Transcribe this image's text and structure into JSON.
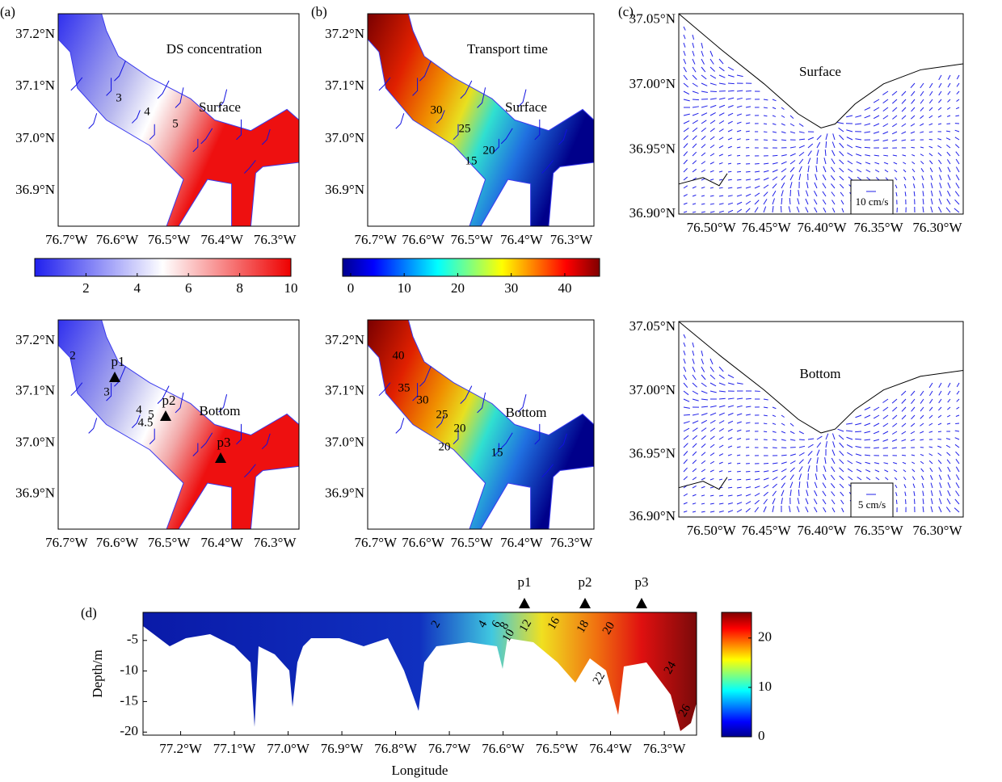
{
  "panel_labels": [
    "(a)",
    "(b)",
    "(c)",
    "(d)"
  ],
  "maps": [
    {
      "title": "DS concentration",
      "layer": "Surface",
      "contour_labels": [
        "3",
        "4",
        "5"
      ]
    },
    {
      "title": "Transport time",
      "layer": "Surface",
      "contour_labels": [
        "30",
        "25",
        "20",
        "15"
      ]
    },
    {
      "layer": "Surface",
      "scale_label": "10 cm/s"
    },
    {
      "layer": "Bottom",
      "contour_labels": [
        "2",
        "3",
        "4",
        "5",
        "4.5"
      ],
      "stations": [
        "p1",
        "p2",
        "p3"
      ]
    },
    {
      "layer": "Bottom",
      "contour_labels": [
        "40",
        "35",
        "30",
        "25",
        "20",
        "15",
        "20"
      ]
    },
    {
      "layer": "Bottom",
      "scale_label": "5 cm/s"
    }
  ],
  "map_axes": {
    "estuary_x": [
      "76.7°W",
      "76.6°W",
      "76.5°W",
      "76.4°W",
      "76.3°W"
    ],
    "estuary_y": [
      "37.2°N",
      "37.1°N",
      "37.0°N",
      "36.9°N"
    ],
    "mouth_x": [
      "76.50°W",
      "76.45°W",
      "76.40°W",
      "76.35°W",
      "76.30°W"
    ],
    "mouth_y": [
      "37.05°N",
      "37.00°N",
      "36.95°N",
      "36.90°N"
    ]
  },
  "colorbars": [
    {
      "lim": [
        0,
        10
      ],
      "ticks": [
        2,
        4,
        6,
        8,
        10
      ]
    },
    {
      "lim": [
        -1.5,
        46.5
      ],
      "ticks": [
        0,
        10,
        20,
        30,
        40
      ]
    }
  ],
  "section": {
    "ylabel": "Depth/m",
    "xlabel": "Longitude",
    "xlim": [
      -77.27,
      -76.24
    ],
    "xticks": [
      {
        "value": -77.2,
        "label": "77.2°W"
      },
      {
        "value": -77.1,
        "label": "77.1°W"
      },
      {
        "value": -77.0,
        "label": "77.0°W"
      },
      {
        "value": -76.9,
        "label": "76.9°W"
      },
      {
        "value": -76.8,
        "label": "76.8°W"
      },
      {
        "value": -76.7,
        "label": "76.7°W"
      },
      {
        "value": -76.6,
        "label": "76.6°W"
      },
      {
        "value": -76.5,
        "label": "76.5°W"
      },
      {
        "value": -76.4,
        "label": "76.4°W"
      },
      {
        "value": -76.3,
        "label": "76.3°W"
      }
    ],
    "ylim": [
      -20.5,
      -0.4
    ],
    "yticks": [
      -5,
      -10,
      -15,
      -20
    ],
    "stations": [
      "p1",
      "p2",
      "p3"
    ],
    "contour_labels": [
      "2",
      "4",
      "6",
      "8",
      "10",
      "12",
      "16",
      "18",
      "20",
      "22",
      "24",
      "26"
    ],
    "colorbar": {
      "lim": [
        0,
        25.2
      ],
      "ticks": [
        0,
        10,
        20
      ]
    }
  }
}
